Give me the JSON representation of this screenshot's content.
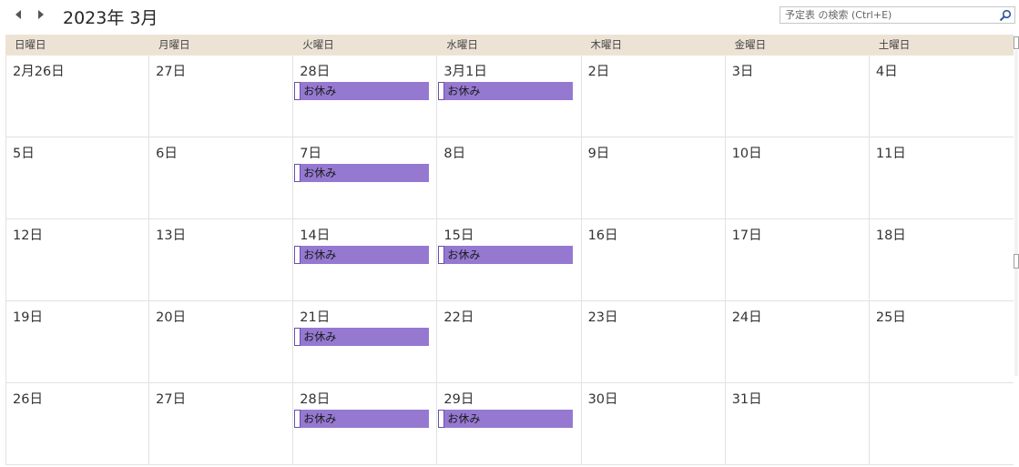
{
  "header": {
    "title": "2023年 3月",
    "prev_icon": "chevron-left-icon",
    "next_icon": "chevron-right-icon"
  },
  "search": {
    "placeholder": "予定表 の検索 (Ctrl+E)",
    "value": "",
    "icon": "search-icon"
  },
  "weekdays": [
    "日曜日",
    "月曜日",
    "火曜日",
    "水曜日",
    "木曜日",
    "金曜日",
    "土曜日"
  ],
  "weeks": [
    {
      "days": [
        {
          "label": "2月26日"
        },
        {
          "label": "27日"
        },
        {
          "label": "28日",
          "event": "お休み"
        },
        {
          "label": "3月1日",
          "event": "お休み"
        },
        {
          "label": "2日"
        },
        {
          "label": "3日"
        },
        {
          "label": "4日"
        }
      ]
    },
    {
      "days": [
        {
          "label": "5日"
        },
        {
          "label": "6日"
        },
        {
          "label": "7日",
          "event": "お休み"
        },
        {
          "label": "8日"
        },
        {
          "label": "9日"
        },
        {
          "label": "10日"
        },
        {
          "label": "11日"
        }
      ]
    },
    {
      "days": [
        {
          "label": "12日"
        },
        {
          "label": "13日"
        },
        {
          "label": "14日",
          "event": "お休み"
        },
        {
          "label": "15日",
          "event": "お休み"
        },
        {
          "label": "16日"
        },
        {
          "label": "17日"
        },
        {
          "label": "18日"
        }
      ]
    },
    {
      "days": [
        {
          "label": "19日"
        },
        {
          "label": "20日"
        },
        {
          "label": "21日",
          "event": "お休み"
        },
        {
          "label": "22日"
        },
        {
          "label": "23日"
        },
        {
          "label": "24日"
        },
        {
          "label": "25日"
        }
      ]
    },
    {
      "days": [
        {
          "label": "26日"
        },
        {
          "label": "27日"
        },
        {
          "label": "28日",
          "event": "お休み"
        },
        {
          "label": "29日",
          "event": "お休み"
        },
        {
          "label": "30日"
        },
        {
          "label": "31日"
        },
        {
          "label": ""
        }
      ]
    }
  ],
  "colors": {
    "header_bg": "#ede3d5",
    "event_bg": "#9579d1",
    "event_marker_border": "#6a4fb0",
    "grid_line": "#e2e2e2"
  }
}
